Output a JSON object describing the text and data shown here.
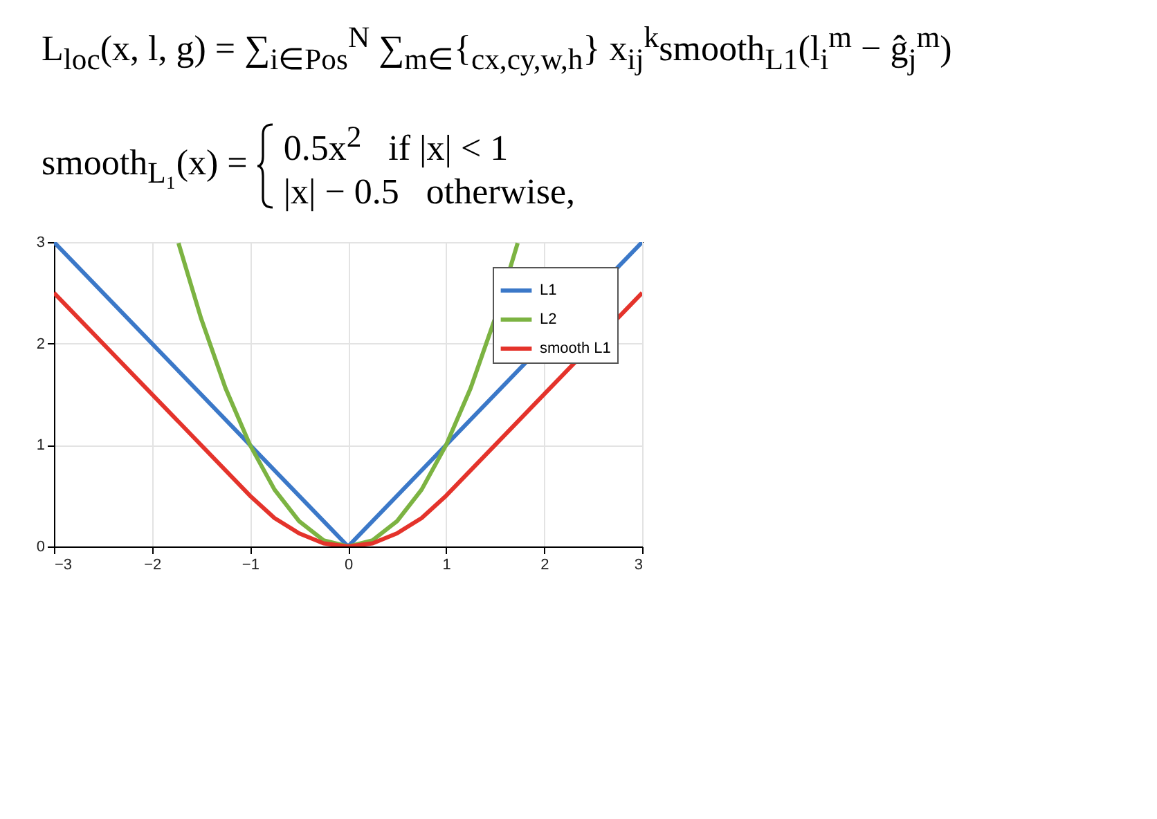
{
  "chart_data": {
    "type": "line",
    "annotations": [
      "L$_{loc}$(x, l, g) = ∑$_{i∈Pos}$$^{N}$ ∑$_{m∈}${$_{cx,cy,w,h}$} x$_{ij}$$^{k}$smooth$_{L1}$(l$_{i}$$^{m}$ − ĝ$_{j}$$^{m}$)",
      "smooth$_{L₁}$(x) =",
      "0.5x$^{2}$   if |x| < 1",
      "|x| − 0.5   otherwise,"
    ],
    "xlim": [
      -3,
      3
    ],
    "xticks": [
      -3,
      -2,
      -1,
      0,
      1,
      2,
      3
    ],
    "ylim": [
      0,
      3
    ],
    "yticks": [
      0,
      1,
      2,
      3
    ],
    "grid": true,
    "legend": "top right",
    "series": [
      {
        "name": "L1",
        "color": "#3b78c8",
        "x": [
          -3,
          0,
          3
        ],
        "values": [
          3,
          0,
          3
        ]
      },
      {
        "name": "L2",
        "color": "#7cb342",
        "x": [
          -1.73,
          -1.5,
          -1.25,
          -1,
          -0.75,
          -0.5,
          -0.25,
          0,
          0.25,
          0.5,
          0.75,
          1,
          1.25,
          1.5,
          1.73
        ],
        "values": [
          2.99,
          2.25,
          1.56,
          1,
          0.56,
          0.25,
          0.06,
          0,
          0.06,
          0.25,
          0.56,
          1,
          1.56,
          2.25,
          2.99
        ]
      },
      {
        "name": "smooth L1",
        "color": "#e4332b",
        "x": [
          -3,
          -1,
          -0.75,
          -0.5,
          -0.25,
          0,
          0.25,
          0.5,
          0.75,
          1,
          3
        ],
        "values": [
          2.5,
          0.5,
          0.28,
          0.13,
          0.03,
          0,
          0.03,
          0.13,
          0.28,
          0.5,
          2.5
        ]
      }
    ]
  }
}
